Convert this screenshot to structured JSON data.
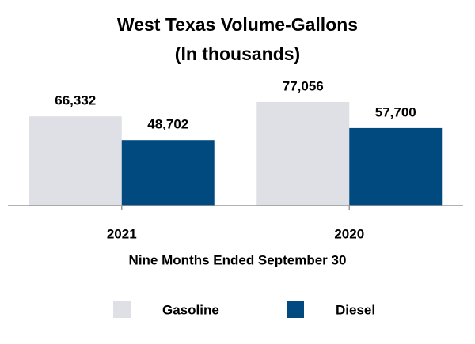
{
  "chart_data": {
    "type": "bar",
    "title": [
      "West Texas Volume-Gallons",
      "(In thousands)"
    ],
    "x_label": "Nine Months Ended September 30",
    "categories": [
      "2021",
      "2020"
    ],
    "series": [
      {
        "name": "Gasoline",
        "color": "#dfe0e6",
        "values": [
          66332,
          77056
        ],
        "value_labels": [
          "66,332",
          "77,056"
        ]
      },
      {
        "name": "Diesel",
        "color": "#004a80",
        "values": [
          48702,
          57700
        ],
        "value_labels": [
          "48,702",
          "57,700"
        ]
      }
    ],
    "legend": "bottom"
  }
}
